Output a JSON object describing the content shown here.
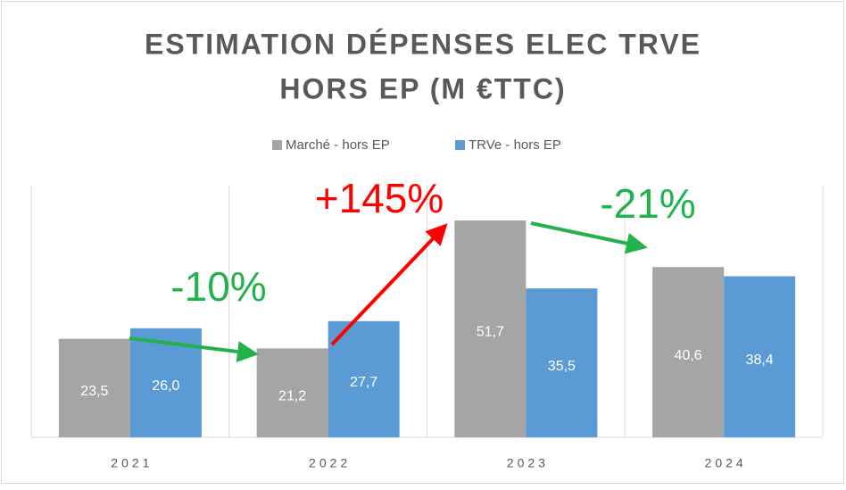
{
  "chart_data": {
    "type": "bar",
    "title": [
      "ESTIMATION DÉPENSES ELEC TRVE",
      "HORS EP (M €TTC)"
    ],
    "categories": [
      "2021",
      "2022",
      "2023",
      "2024"
    ],
    "series": [
      {
        "name": "Marché - hors EP",
        "color": "#a5a5a5",
        "values": [
          23.5,
          21.2,
          51.7,
          40.6
        ],
        "value_labels": [
          "23,5",
          "21,2",
          "51,7",
          "40,6"
        ]
      },
      {
        "name": "TRVe - hors EP",
        "color": "#5b9bd5",
        "values": [
          26.0,
          27.7,
          35.5,
          38.4
        ],
        "value_labels": [
          "26,0",
          "27,7",
          "35,5",
          "38,4"
        ]
      }
    ],
    "ylim": [
      0,
      60
    ],
    "legend": "top",
    "annotations": [
      {
        "text": "-10%",
        "color": "#22b24c"
      },
      {
        "text": "+145%",
        "color": "#ff0000"
      },
      {
        "text": "-21%",
        "color": "#22b24c"
      }
    ]
  }
}
